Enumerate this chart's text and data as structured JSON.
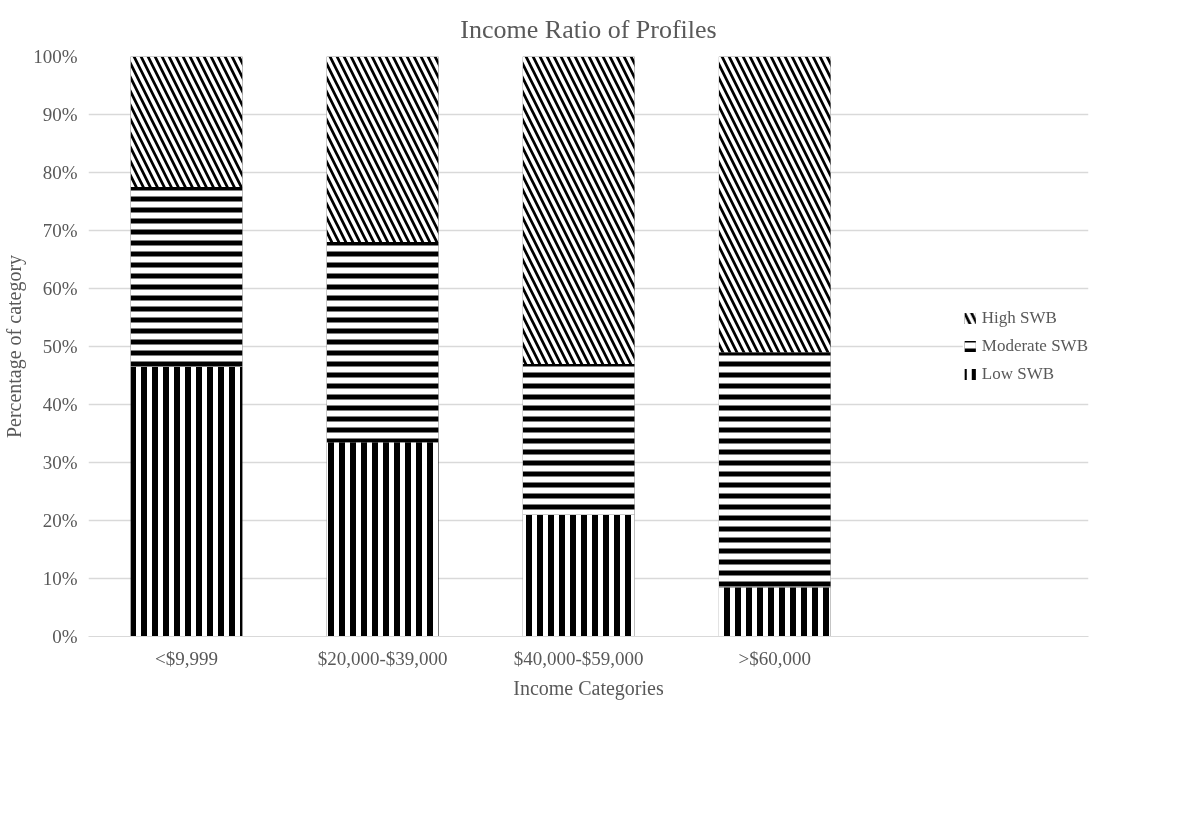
{
  "chart_data": {
    "type": "bar",
    "title": "Income Ratio of Profiles",
    "xlabel": "Income Categories",
    "ylabel": "Percentage of category",
    "categories": [
      "<$9,999",
      "$20,000-$39,000",
      "$40,000-$59,000",
      ">$60,000"
    ],
    "stacked": true,
    "series": [
      {
        "name": "Low SWB",
        "color": "#000000",
        "values": [
          46.5,
          33.5,
          21,
          8.5
        ]
      },
      {
        "name": "Moderate SWB",
        "color": "#000000",
        "values": [
          31,
          34.5,
          26,
          40.5
        ]
      },
      {
        "name": "High SWB",
        "color": "#000000",
        "values": [
          22.5,
          32,
          53,
          51
        ]
      }
    ],
    "ylim": [
      0,
      100
    ],
    "yticks": [
      {
        "value": 0,
        "label": "0%"
      },
      {
        "value": 10,
        "label": "10%"
      },
      {
        "value": 20,
        "label": "20%"
      },
      {
        "value": 30,
        "label": "30%"
      },
      {
        "value": 40,
        "label": "40%"
      },
      {
        "value": 50,
        "label": "50%"
      },
      {
        "value": 60,
        "label": "60%"
      },
      {
        "value": 70,
        "label": "70%"
      },
      {
        "value": 80,
        "label": "80%"
      },
      {
        "value": 90,
        "label": "90%"
      },
      {
        "value": 100,
        "label": "100%"
      }
    ],
    "grid": "y",
    "legend": "right"
  }
}
